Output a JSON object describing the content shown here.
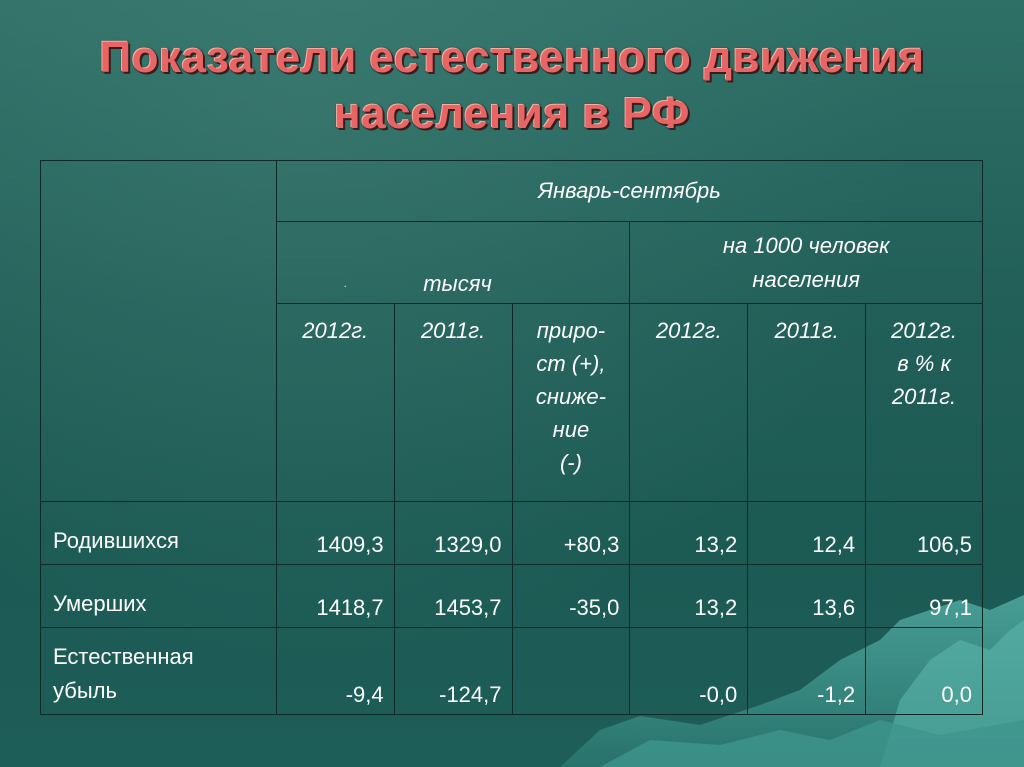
{
  "title": {
    "line1": "Показатели естественного движения",
    "line2": "населения в РФ"
  },
  "table": {
    "period": "Январь-сентябрь",
    "group_thousands": "тысяч",
    "group_per_1000_line1": "на 1000 человек",
    "group_per_1000_line2": "населения",
    "dot_mark": ".",
    "columns": {
      "y2012": "2012г.",
      "y2011": "2011г.",
      "change": [
        "приро-",
        "ст (+),",
        "сниже-",
        "ние",
        "(-)"
      ],
      "r2012": "2012г.",
      "r2011": "2011г.",
      "pct": [
        "2012г.",
        "в % к",
        "2011г."
      ]
    },
    "rows": [
      {
        "label": [
          "Родившихся"
        ],
        "values": [
          "1409,3",
          "1329,0",
          "+80,3",
          "13,2",
          "12,4",
          "106,5"
        ]
      },
      {
        "label": [
          "Умерших"
        ],
        "values": [
          "1418,7",
          "1453,7",
          "-35,0",
          "13,2",
          "13,6",
          "97,1"
        ]
      },
      {
        "label": [
          "Естественная",
          "убыль"
        ],
        "values": [
          "-9,4",
          "-124,7",
          "",
          "-0,0",
          "-1,2",
          "0,0"
        ]
      }
    ]
  }
}
